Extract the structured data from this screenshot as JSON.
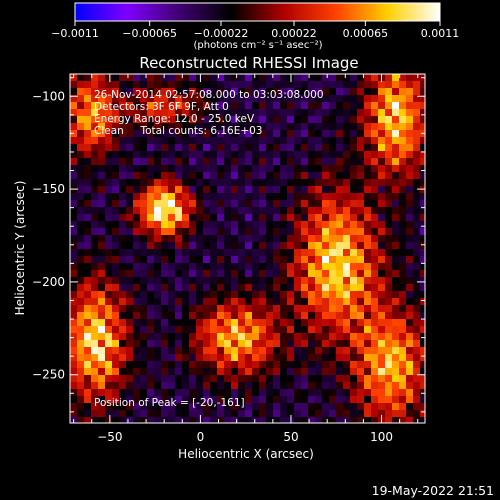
{
  "chart_data": {
    "type": "heatmap",
    "title": "Reconstructed RHESSI Image",
    "xlabel": "Heliocentric X (arcsec)",
    "ylabel": "Heliocentric Y (arcsec)",
    "xlim": [
      -72,
      124
    ],
    "ylim": [
      -276,
      -88
    ],
    "xticks": [
      -50,
      0,
      50,
      100
    ],
    "yticks": [
      -100,
      -150,
      -200,
      -250
    ],
    "x_tick_labels": [
      "−50",
      "0",
      "50",
      "100"
    ],
    "y_tick_labels": [
      "−100",
      "−150",
      "−200",
      "−250"
    ],
    "colorbar": {
      "range": [
        -0.0011,
        0.0011
      ],
      "ticks": [
        -0.0011,
        -0.00065,
        -0.00022,
        0.00022,
        0.00065,
        0.0011
      ],
      "tick_labels": [
        "−0.0011",
        "−0.00065",
        "−0.00022",
        "0.00022",
        "0.00065",
        "0.0011"
      ],
      "unit_label": "(photons cm⁻² s⁻¹ asec⁻²)",
      "colors": [
        "#0000ff",
        "#8000ff",
        "#400070",
        "#000000",
        "#b00000",
        "#ff4000",
        "#ffd000",
        "#ffffff"
      ]
    },
    "annotations": [
      "26-Nov-2014 02:57:08.000 to 03:03:08.000",
      "Detectors: 3F 6F 9F, Att 0",
      "Energy Range: 12.0 - 25.0 keV",
      "Clean     Total counts: 6.16E+03"
    ],
    "peak_label": "Position of Peak = [-20,-161]",
    "peak": [
      -20,
      -161
    ],
    "sources": [
      {
        "x": -20,
        "y": -161,
        "amp": 1.0,
        "sx": 10,
        "sy": 10
      },
      {
        "x": 75,
        "y": -190,
        "amp": 0.85,
        "sx": 16,
        "sy": 26
      },
      {
        "x": 108,
        "y": -112,
        "amp": 0.8,
        "sx": 12,
        "sy": 22
      },
      {
        "x": 105,
        "y": -245,
        "amp": 0.75,
        "sx": 14,
        "sy": 22
      },
      {
        "x": -60,
        "y": -110,
        "amp": 0.7,
        "sx": 10,
        "sy": 16
      },
      {
        "x": -58,
        "y": -232,
        "amp": 0.85,
        "sx": 12,
        "sy": 22
      },
      {
        "x": 20,
        "y": -230,
        "amp": 0.75,
        "sx": 16,
        "sy": 14
      },
      {
        "x": -20,
        "y": -105,
        "amp": 0.5,
        "sx": 14,
        "sy": 8
      }
    ],
    "timestamp": "19-May-2022 21:51"
  }
}
